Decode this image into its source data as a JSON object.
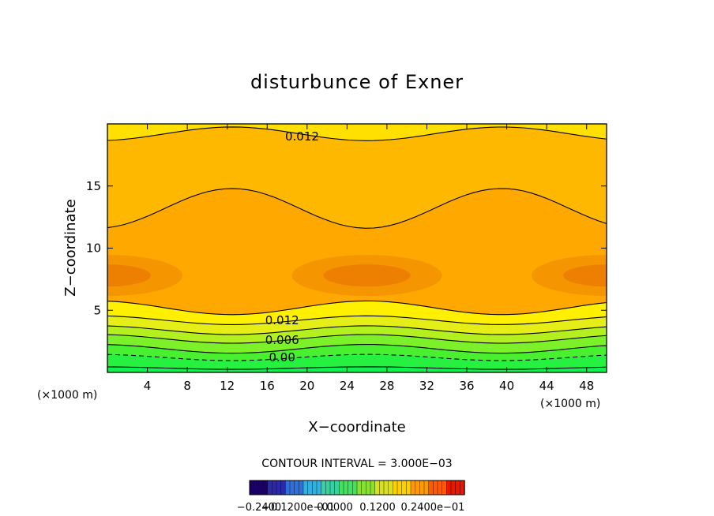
{
  "chart_data": {
    "type": "contour",
    "title": "disturbunce of Exner",
    "xlabel": "X−coordinate",
    "ylabel": "Z−coordinate",
    "x_unit_left": "(×1000 m)",
    "x_unit_right": "(×1000 m)",
    "xlim": [
      0,
      50
    ],
    "ylim": [
      0,
      20
    ],
    "x_ticks": [
      4,
      8,
      12,
      16,
      20,
      24,
      28,
      32,
      36,
      40,
      44,
      48
    ],
    "x_tick_labels": [
      "4",
      "8",
      "12",
      "16",
      "20",
      "24",
      "28",
      "32",
      "36",
      "40",
      "44",
      "48"
    ],
    "y_ticks": [
      5,
      10,
      15
    ],
    "y_tick_labels": [
      "5",
      "10",
      "15"
    ],
    "contour_interval_text": "CONTOUR INTERVAL = 3.000E−03",
    "contour_labels": [
      {
        "text": "0.012",
        "x": 19.5,
        "z": 19.0
      },
      {
        "text": "0.012",
        "x": 17.5,
        "z": 4.2
      },
      {
        "text": "0.006",
        "x": 17.5,
        "z": 2.6
      },
      {
        "text": "0.00",
        "x": 17.5,
        "z": 1.2
      }
    ],
    "colorbar": {
      "colors": [
        "#1a0066",
        "#2a2aa8",
        "#2f6fd8",
        "#33b0e0",
        "#39d0a0",
        "#44e060",
        "#8ae030",
        "#d8e020",
        "#ffd000",
        "#ff9a00",
        "#ff5a00",
        "#e81800"
      ],
      "tick_labels": [
        "−0.2400",
        "−0.1200e−01",
        "0.0000",
        "0.1200",
        "0.2400e−01"
      ]
    },
    "field_colors": {
      "low": "#18f048",
      "mid": "#c8f020",
      "high": "#ffd400",
      "peak": "#f07c00"
    }
  }
}
